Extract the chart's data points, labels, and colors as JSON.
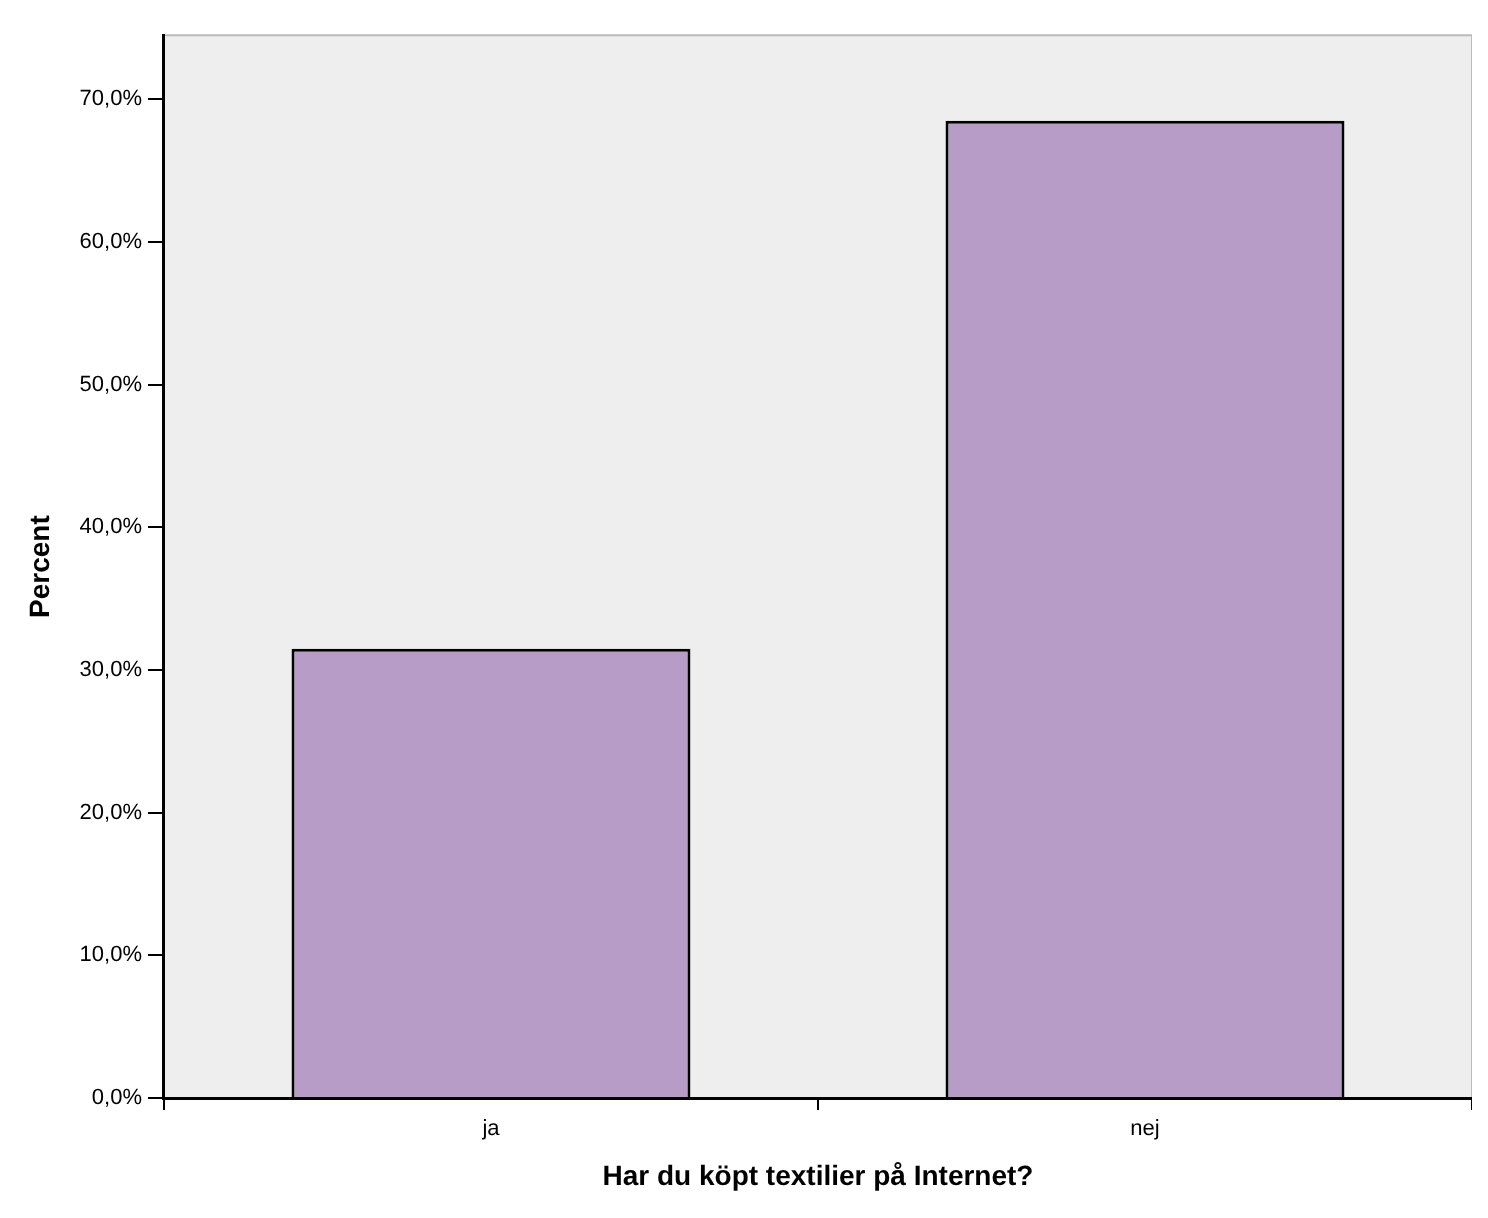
{
  "chart_data": {
    "type": "bar",
    "xlabel": "Har du köpt textilier på Internet?",
    "ylabel": "Percent",
    "categories": [
      "ja",
      "nej"
    ],
    "values": [
      31.5,
      68.5
    ],
    "color": "#b89cc8",
    "ylim": [
      0,
      74.5
    ],
    "yticks": [
      {
        "value": 0,
        "label": "0,0%"
      },
      {
        "value": 10,
        "label": "10,0%"
      },
      {
        "value": 20,
        "label": "20,0%"
      },
      {
        "value": 30,
        "label": "30,0%"
      },
      {
        "value": 40,
        "label": "40,0%"
      },
      {
        "value": 50,
        "label": "50,0%"
      },
      {
        "value": 60,
        "label": "60,0%"
      },
      {
        "value": 70,
        "label": "70,0%"
      }
    ],
    "grid": false,
    "legend": false
  }
}
